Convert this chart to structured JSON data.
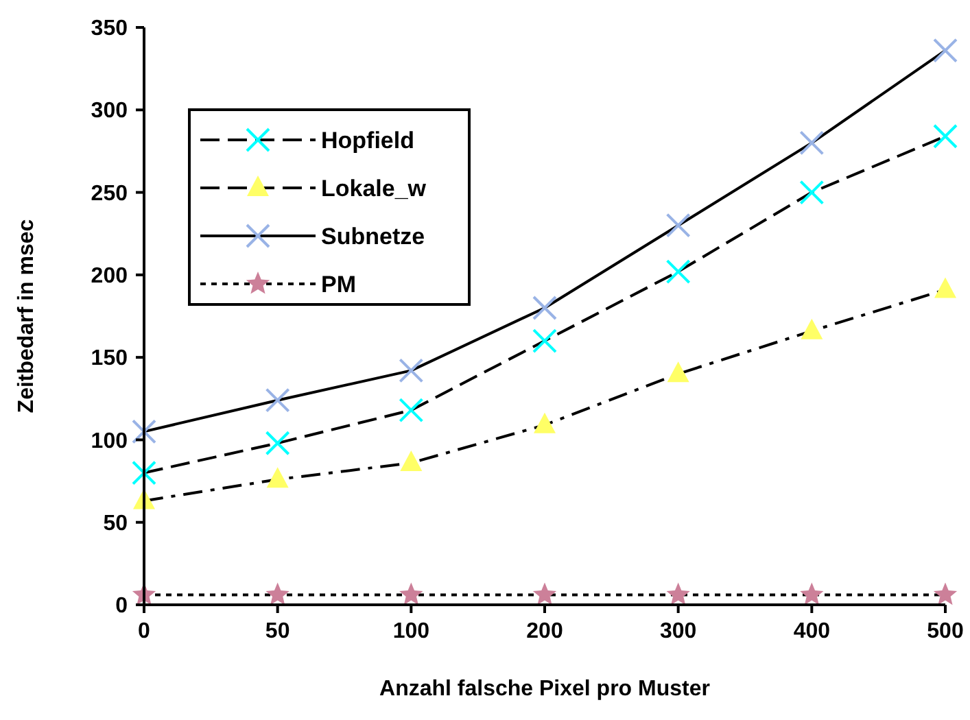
{
  "chart_data": {
    "type": "line",
    "xlabel": "Anzahl falsche Pixel pro Muster",
    "ylabel": "Zeitbedarf in msec",
    "categories": [
      "0",
      "50",
      "100",
      "200",
      "300",
      "400",
      "500"
    ],
    "series": [
      {
        "name": "Hopfield",
        "color": "#00ffff",
        "marker": "cross",
        "line_style": "dashed",
        "values": [
          80,
          98,
          118,
          160,
          202,
          250,
          284
        ]
      },
      {
        "name": "Lokale_w",
        "color": "#ffff66",
        "marker": "triangle",
        "line_style": "dashed",
        "values": [
          63,
          76,
          86,
          109,
          140,
          166,
          191
        ]
      },
      {
        "name": "Subnetze",
        "color": "#99b3e6",
        "marker": "cross",
        "line_style": "solid",
        "values": [
          105,
          124,
          142,
          180,
          230,
          280,
          336
        ]
      },
      {
        "name": "PM",
        "color": "#cc8099",
        "marker": "star",
        "line_style": "dotted",
        "values": [
          6,
          6,
          6,
          6,
          6,
          6,
          6
        ]
      }
    ],
    "ylim": [
      0,
      350
    ],
    "yticks": [
      0,
      50,
      100,
      150,
      200,
      250,
      300,
      350
    ],
    "grid": false,
    "legend": "top left"
  }
}
